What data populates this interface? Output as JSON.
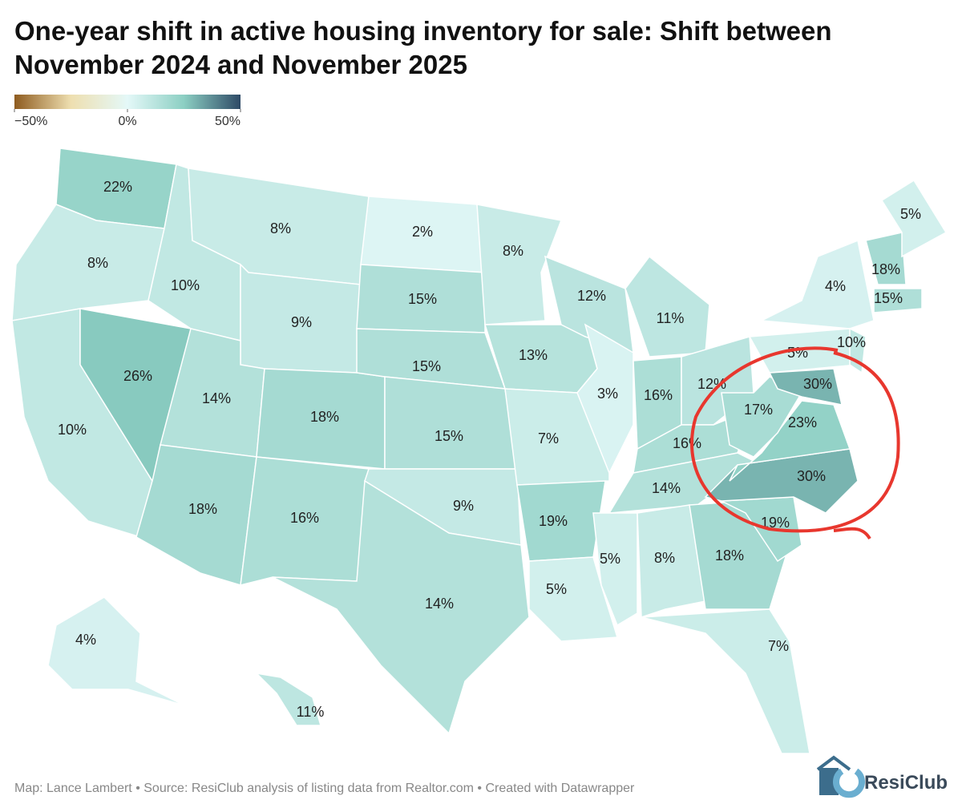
{
  "chart_data": {
    "type": "choropleth",
    "title": "One-year shift in active housing inventory for sale: Shift between November 2024 and November 2025",
    "colorlim": [
      -50,
      50
    ],
    "colorticks": [
      {
        "value": -50,
        "label": "−50%"
      },
      {
        "value": 0,
        "label": "0%"
      },
      {
        "value": 50,
        "label": "50%"
      }
    ],
    "color_scale": [
      "#8e5b1f",
      "#eedfb0",
      "#e4f8f8",
      "#8ccfc3",
      "#2e4a66"
    ],
    "values": [
      22,
      8,
      10,
      26,
      10,
      8,
      9,
      14,
      18,
      18,
      16,
      2,
      15,
      15,
      15,
      9,
      14,
      8,
      13,
      7,
      19,
      5,
      12,
      3,
      11,
      16,
      12,
      16,
      14,
      5,
      8,
      18,
      7,
      19,
      30,
      23,
      17,
      30,
      5,
      4,
      10,
      18,
      15,
      5,
      4,
      11
    ],
    "value_labels": [
      "22%",
      "8%",
      "10%",
      "26%",
      "10%",
      "8%",
      "9%",
      "14%",
      "18%",
      "18%",
      "16%",
      "2%",
      "15%",
      "15%",
      "15%",
      "9%",
      "14%",
      "8%",
      "13%",
      "7%",
      "19%",
      "5%",
      "12%",
      "3%",
      "11%",
      "16%",
      "12%",
      "16%",
      "14%",
      "5%",
      "8%",
      "18%",
      "7%",
      "19%",
      "30%",
      "23%",
      "17%",
      "30%",
      "5%",
      "4%",
      "10%",
      "18%",
      "15%",
      "5%",
      "4%",
      "11%"
    ],
    "source": "Map: Lance Lambert • Source: ResiClub analysis of listing data from Realtor.com • Created with Datawrapper",
    "brand": "ResiClub"
  }
}
